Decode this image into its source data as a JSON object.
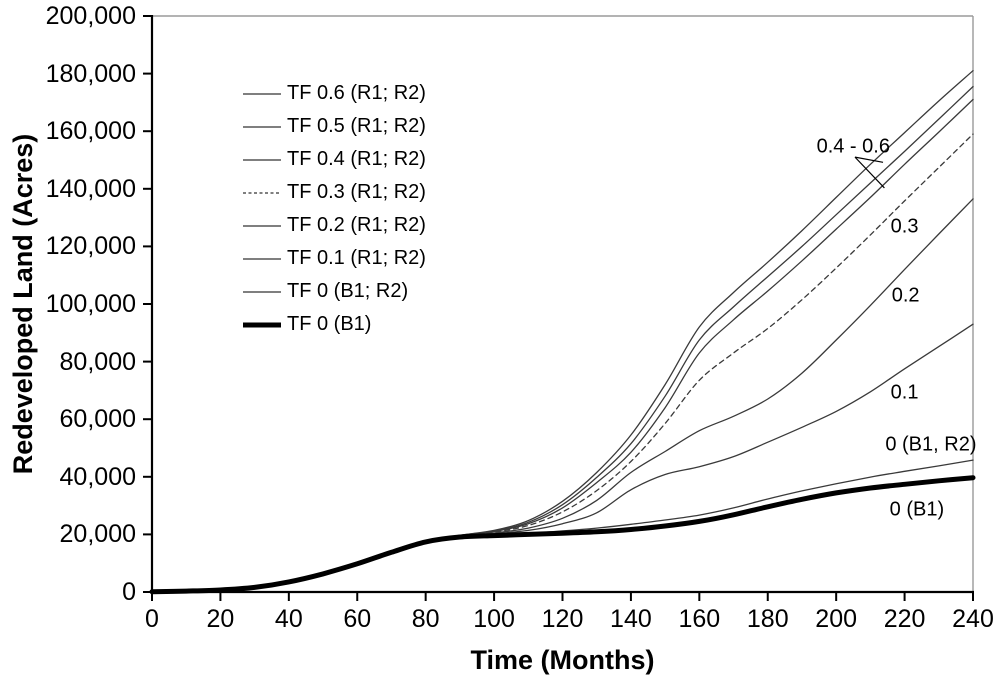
{
  "chart_data": {
    "type": "line",
    "title": "",
    "xlabel": "Time (Months)",
    "ylabel": "Redeveloped Land (Acres)",
    "xlim": [
      0,
      240
    ],
    "ylim": [
      0,
      200000
    ],
    "grid": "off",
    "frame": true,
    "legend_position": "inside-top-left",
    "x_ticks": [
      0,
      20,
      40,
      60,
      80,
      100,
      120,
      140,
      160,
      180,
      200,
      220,
      240
    ],
    "x_tick_labels": [
      "0",
      "20",
      "40",
      "60",
      "80",
      "100",
      "120",
      "140",
      "160",
      "180",
      "200",
      "220",
      "240"
    ],
    "y_ticks": [
      0,
      20000,
      40000,
      60000,
      80000,
      100000,
      120000,
      140000,
      160000,
      180000,
      200000
    ],
    "y_tick_labels": [
      "0",
      "20,000",
      "40,000",
      "60,000",
      "80,000",
      "100,000",
      "120,000",
      "140,000",
      "160,000",
      "180,000",
      "200,000"
    ],
    "x": [
      0,
      10,
      20,
      30,
      40,
      50,
      60,
      70,
      80,
      90,
      100,
      110,
      120,
      130,
      140,
      150,
      160,
      170,
      180,
      190,
      200,
      210,
      220,
      230,
      240
    ],
    "series": [
      {
        "name": "TF 0.6 (R1; R2)",
        "style": "thin",
        "values": [
          100,
          300,
          700,
          1600,
          3500,
          6300,
          9800,
          13800,
          17400,
          19700,
          21400,
          24800,
          31500,
          41500,
          54500,
          72000,
          92000,
          104000,
          114500,
          125500,
          137000,
          148500,
          159500,
          170500,
          181000
        ]
      },
      {
        "name": "TF 0.5 (R1; R2)",
        "style": "thin",
        "values": [
          100,
          300,
          700,
          1600,
          3500,
          6300,
          9800,
          13800,
          17400,
          19650,
          21200,
          24200,
          30300,
          39800,
          51500,
          68000,
          87500,
          99000,
          109500,
          120000,
          131000,
          142000,
          153000,
          164200,
          175500
        ]
      },
      {
        "name": "TF 0.4 (R1; R2)",
        "style": "thin",
        "values": [
          100,
          300,
          700,
          1600,
          3500,
          6300,
          9800,
          13800,
          17400,
          19600,
          21000,
          23700,
          29200,
          38000,
          48500,
          64000,
          83000,
          94500,
          104500,
          115000,
          126000,
          137000,
          148500,
          159700,
          171000
        ]
      },
      {
        "name": "TF 0.3 (R1; R2)",
        "style": "dashed",
        "values": [
          100,
          300,
          700,
          1600,
          3500,
          6300,
          9800,
          13800,
          17400,
          19500,
          20800,
          23100,
          27800,
          35200,
          45300,
          58500,
          73500,
          83000,
          91500,
          101500,
          112500,
          124000,
          135800,
          147400,
          159000
        ]
      },
      {
        "name": "TF 0.2 (R1; R2)",
        "style": "thin",
        "values": [
          100,
          300,
          700,
          1600,
          3500,
          6300,
          9800,
          13800,
          17400,
          19400,
          20500,
          22200,
          25600,
          31800,
          41500,
          48800,
          56000,
          61000,
          67000,
          76000,
          87500,
          99500,
          112000,
          124300,
          136500
        ]
      },
      {
        "name": "TF 0.1 (R1; R2)",
        "style": "thin",
        "values": [
          100,
          300,
          700,
          1600,
          3500,
          6300,
          9800,
          13800,
          17400,
          19300,
          20200,
          21400,
          23700,
          27500,
          35500,
          40800,
          43500,
          47000,
          52000,
          57200,
          62700,
          69500,
          77500,
          85200,
          93000
        ]
      },
      {
        "name": "TF 0 (B1; R2)",
        "style": "thin",
        "values": [
          100,
          300,
          700,
          1600,
          3500,
          6300,
          9800,
          13800,
          17400,
          19200,
          19900,
          20400,
          21200,
          22200,
          23500,
          25000,
          26700,
          29200,
          32300,
          35100,
          37600,
          39900,
          41900,
          43800,
          45800
        ]
      },
      {
        "name": "TF 0 (B1)",
        "style": "thick",
        "values": [
          100,
          300,
          700,
          1600,
          3500,
          6300,
          9800,
          13800,
          17400,
          19100,
          19600,
          20000,
          20400,
          20900,
          21700,
          22900,
          24500,
          26800,
          29600,
          32200,
          34400,
          36100,
          37400,
          38600,
          39700
        ]
      }
    ],
    "annotations": [
      {
        "text": "0.4 - 0.6",
        "t": 205.0,
        "v": 154500
      },
      {
        "text": "0.3",
        "t": 220.0,
        "v": 126700
      },
      {
        "text": "0.2",
        "t": 220.3,
        "v": 102800
      },
      {
        "text": "0.1",
        "t": 220.0,
        "v": 69000
      },
      {
        "text": "0 (B1, R2)",
        "t": 227.7,
        "v": 51000
      },
      {
        "text": "0 (B1)",
        "t": 223.6,
        "v": 28500
      }
    ],
    "leader_lines": [
      {
        "from": {
          "t": 205.5,
          "v": 151000
        },
        "to": {
          "t": 213.7,
          "v": 149200
        }
      },
      {
        "from": {
          "t": 205.5,
          "v": 151000
        },
        "to": {
          "t": 214.1,
          "v": 140300
        }
      }
    ],
    "colors": {
      "thin_line": "#3a3a3a",
      "thick_line": "#000000",
      "axis": "#000000",
      "frame": "#9a9a9a",
      "text": "#000000",
      "background": "#ffffff"
    }
  }
}
